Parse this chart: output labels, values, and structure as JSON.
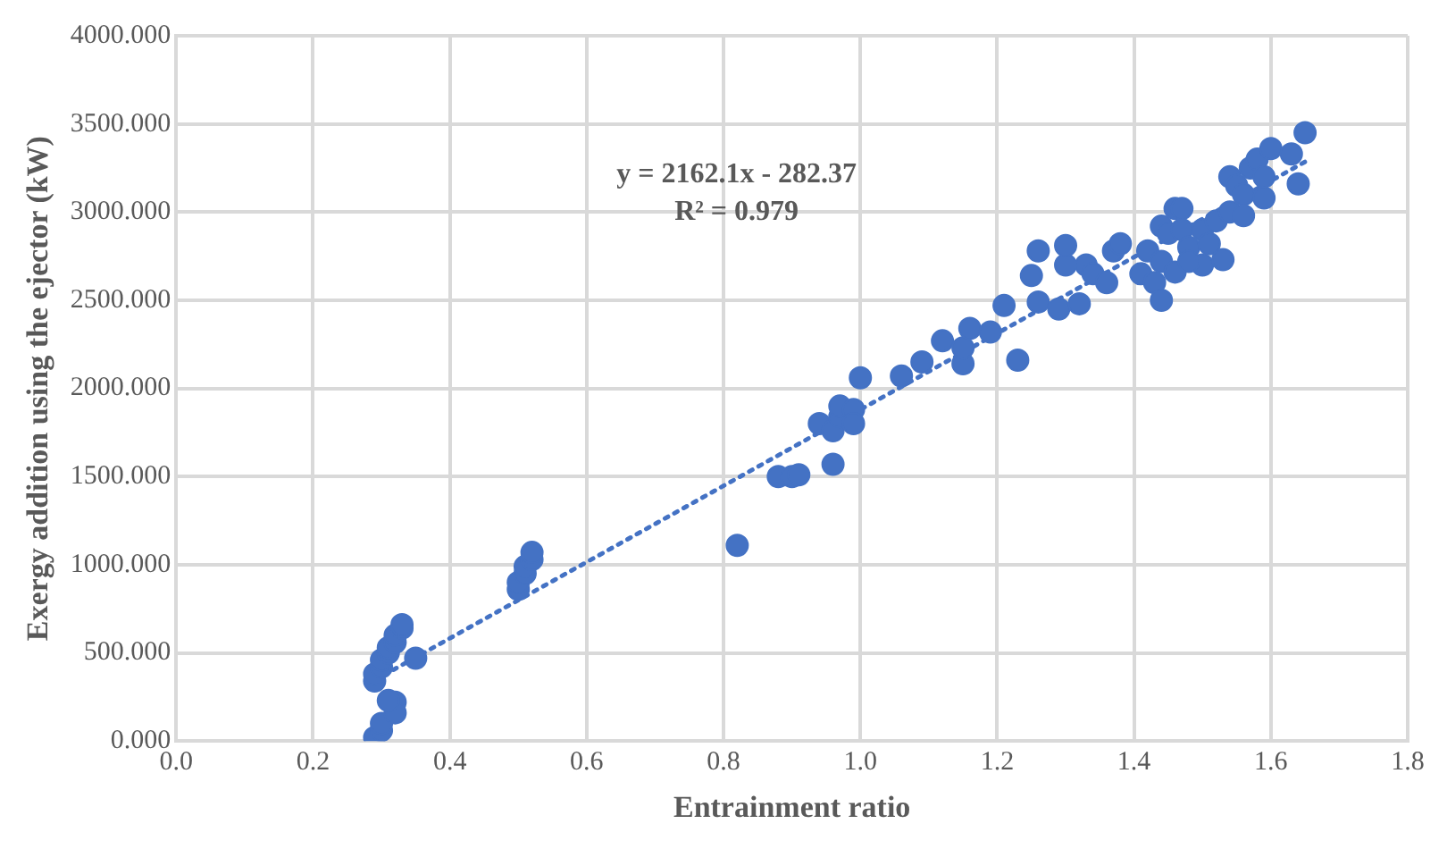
{
  "chart_data": {
    "type": "scatter",
    "xlabel": "Entrainment ratio",
    "ylabel": "Exergy addition using the ejector (kW)",
    "annotations": [
      "y = 2162.1x - 282.37",
      "R² = 0.979"
    ],
    "xlim": [
      0,
      1.8
    ],
    "ylim": [
      0,
      4000
    ],
    "xticks": [
      {
        "value": 0,
        "label": "0.0"
      },
      {
        "value": 0.2,
        "label": "0.2"
      },
      {
        "value": 0.4,
        "label": "0.4"
      },
      {
        "value": 0.6,
        "label": "0.6"
      },
      {
        "value": 0.8,
        "label": "0.8"
      },
      {
        "value": 1,
        "label": "1.0"
      },
      {
        "value": 1.2,
        "label": "1.2"
      },
      {
        "value": 1.4,
        "label": "1.4"
      },
      {
        "value": 1.6,
        "label": "1.6"
      },
      {
        "value": 1.8,
        "label": "1.8"
      }
    ],
    "yticks": [
      {
        "value": 0,
        "label": "0.000"
      },
      {
        "value": 500,
        "label": "500.000"
      },
      {
        "value": 1000,
        "label": "1000.000"
      },
      {
        "value": 1500,
        "label": "1500.000"
      },
      {
        "value": 2000,
        "label": "2000.000"
      },
      {
        "value": 2500,
        "label": "2500.000"
      },
      {
        "value": 3000,
        "label": "3000.000"
      },
      {
        "value": 3500,
        "label": "3500.000"
      },
      {
        "value": 4000,
        "label": "4000.000"
      }
    ],
    "grid": true,
    "marker": "circle",
    "series": [
      {
        "type": "scatter",
        "color": "#4472c4",
        "x": [
          0.29,
          0.3,
          0.3,
          0.32,
          0.32,
          0.31,
          0.29,
          0.29,
          0.3,
          0.3,
          0.31,
          0.31,
          0.32,
          0.32,
          0.33,
          0.33,
          0.35,
          0.5,
          0.5,
          0.51,
          0.51,
          0.52,
          0.52,
          0.82,
          0.88,
          0.9,
          0.91,
          0.96,
          0.94,
          0.96,
          0.97,
          0.97,
          0.99,
          0.99,
          1.0,
          1.06,
          1.09,
          1.12,
          1.15,
          1.15,
          1.16,
          1.19,
          1.21,
          1.23,
          1.25,
          1.26,
          1.26,
          1.29,
          1.3,
          1.3,
          1.32,
          1.33,
          1.34,
          1.36,
          1.37,
          1.38,
          1.41,
          1.42,
          1.43,
          1.44,
          1.44,
          1.44,
          1.45,
          1.46,
          1.46,
          1.47,
          1.47,
          1.48,
          1.5,
          1.5,
          1.51,
          1.52,
          1.53,
          1.54,
          1.54,
          1.55,
          1.56,
          1.57,
          1.58,
          1.59,
          1.59,
          1.6,
          1.63,
          1.64,
          1.65,
          1.56,
          1.48
        ],
        "values": [
          20,
          60,
          100,
          220,
          160,
          230,
          340,
          380,
          420,
          460,
          500,
          530,
          560,
          600,
          640,
          660,
          470,
          860,
          900,
          950,
          990,
          1030,
          1070,
          1110,
          1500,
          1500,
          1510,
          1570,
          1800,
          1760,
          1840,
          1900,
          1880,
          1800,
          2060,
          2070,
          2150,
          2270,
          2140,
          2230,
          2340,
          2320,
          2470,
          2160,
          2640,
          2780,
          2490,
          2450,
          2700,
          2810,
          2480,
          2700,
          2650,
          2600,
          2780,
          2820,
          2650,
          2780,
          2600,
          2500,
          2720,
          2920,
          2880,
          3020,
          2660,
          3020,
          2900,
          2800,
          2700,
          2900,
          2820,
          2950,
          2730,
          3000,
          3200,
          3150,
          3100,
          3250,
          3300,
          3080,
          3200,
          3360,
          3330,
          3160,
          3450,
          2980,
          2720
        ]
      },
      {
        "type": "line",
        "color": "#4472c4",
        "line_style": "dotted",
        "marker": "none",
        "x": [
          0.29,
          1.65
        ],
        "values": [
          345,
          3285
        ]
      }
    ]
  }
}
